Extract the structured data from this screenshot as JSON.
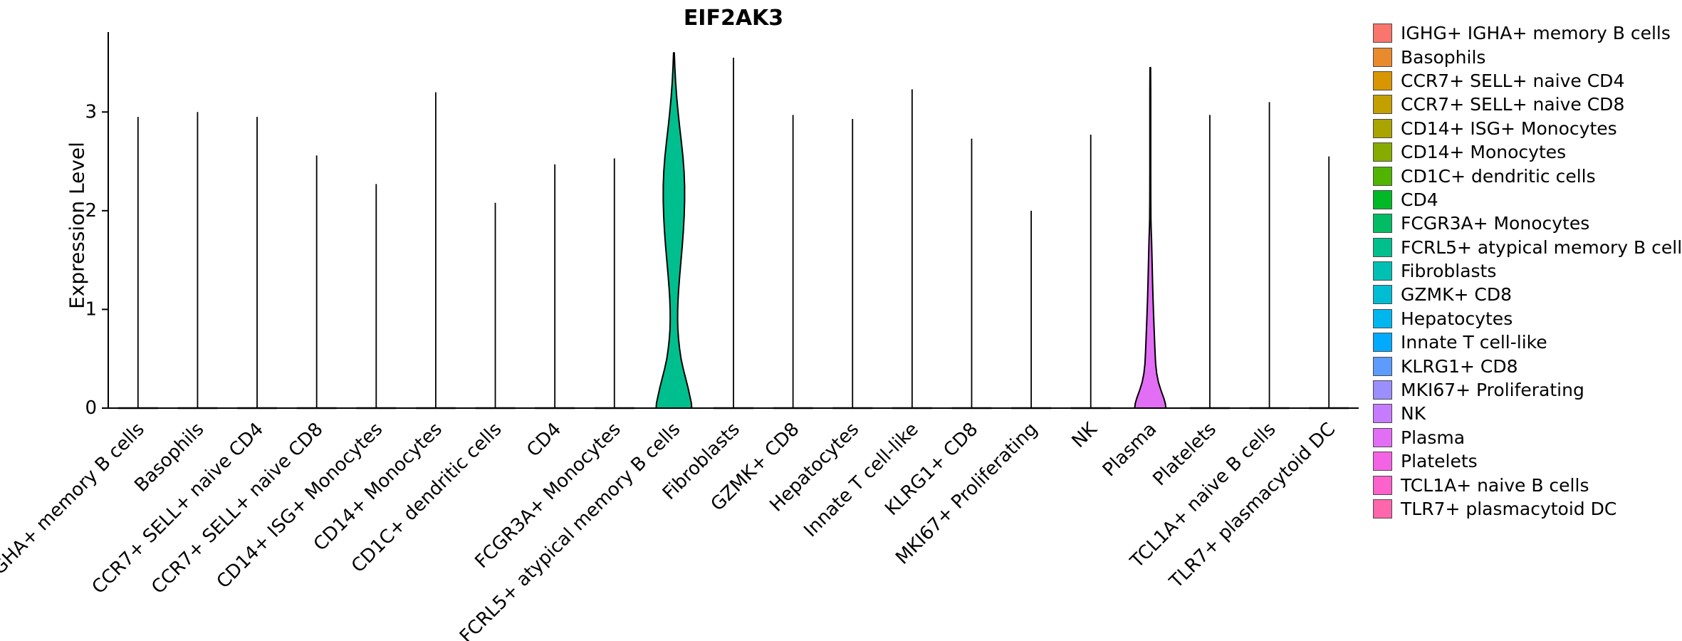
{
  "chart_data": {
    "type": "violin",
    "title": "EIF2AK3",
    "xlabel": "",
    "ylabel": "Expression Level",
    "yticks": [
      0,
      1,
      2,
      3
    ],
    "ylim": [
      0,
      3.81
    ],
    "legend_position": "right",
    "categories": [
      "IGHG+ IGHA+ memory B cells",
      "Basophils",
      "CCR7+ SELL+ naive CD4",
      "CCR7+ SELL+ naive CD8",
      "CD14+ ISG+ Monocytes",
      "CD14+ Monocytes",
      "CD1C+ dendritic cells",
      "CD4",
      "FCGR3A+ Monocytes",
      "FCRL5+ atypical memory B cells",
      "Fibroblasts",
      "GZMK+ CD8",
      "Hepatocytes",
      "Innate T cell-like",
      "KLRG1+ CD8",
      "MKI67+ Proliferating",
      "NK",
      "Plasma",
      "Platelets",
      "TCL1A+ naive B cells",
      "TLR7+ plasmacytoid DC"
    ],
    "series": [
      {
        "name": "IGHG+ IGHA+ memory B cells",
        "color": "#F8766D",
        "max_expression": 2.95,
        "violin": null
      },
      {
        "name": "Basophils",
        "color": "#E98A2C",
        "max_expression": 3.0,
        "violin": null
      },
      {
        "name": "CCR7+ SELL+ naive CD4",
        "color": "#D89600",
        "max_expression": 2.95,
        "violin": null
      },
      {
        "name": "CCR7+ SELL+ naive CD8",
        "color": "#C39F00",
        "max_expression": 2.56,
        "violin": null
      },
      {
        "name": "CD14+ ISG+ Monocytes",
        "color": "#A9A400",
        "max_expression": 2.27,
        "violin": null
      },
      {
        "name": "CD14+ Monocytes",
        "color": "#86AC00",
        "max_expression": 3.2,
        "violin": null
      },
      {
        "name": "CD1C+ dendritic cells",
        "color": "#50B400",
        "max_expression": 2.08,
        "violin": null
      },
      {
        "name": "CD4",
        "color": "#00B927",
        "max_expression": 2.47,
        "violin": null
      },
      {
        "name": "FCGR3A+ Monocytes",
        "color": "#00BC65",
        "max_expression": 2.53,
        "violin": null
      },
      {
        "name": "FCRL5+ atypical memory B cells",
        "color": "#00BF8E",
        "max_expression": 3.6,
        "violin": [
          [
            0.0,
            25
          ],
          [
            0.05,
            24.5
          ],
          [
            0.1,
            23
          ],
          [
            0.2,
            20
          ],
          [
            0.3,
            16.5
          ],
          [
            0.4,
            13
          ],
          [
            0.5,
            10
          ],
          [
            0.6,
            8
          ],
          [
            0.7,
            6.5
          ],
          [
            0.8,
            5.5
          ],
          [
            0.9,
            5.2
          ],
          [
            1.0,
            5.3
          ],
          [
            1.1,
            5.8
          ],
          [
            1.2,
            6.6
          ],
          [
            1.35,
            8.2
          ],
          [
            1.5,
            10
          ],
          [
            1.65,
            11.8
          ],
          [
            1.8,
            13.3
          ],
          [
            1.95,
            14.4
          ],
          [
            2.1,
            15
          ],
          [
            2.25,
            15
          ],
          [
            2.4,
            14.2
          ],
          [
            2.55,
            12.6
          ],
          [
            2.7,
            10.4
          ],
          [
            2.85,
            8
          ],
          [
            3.0,
            5.8
          ],
          [
            3.15,
            3.9
          ],
          [
            3.3,
            2.4
          ],
          [
            3.45,
            1.3
          ],
          [
            3.6,
            0.5
          ]
        ]
      },
      {
        "name": "Fibroblasts",
        "color": "#00C0B3",
        "max_expression": 3.55,
        "violin": null
      },
      {
        "name": "GZMK+ CD8",
        "color": "#00BDD4",
        "max_expression": 2.97,
        "violin": null
      },
      {
        "name": "Hepatocytes",
        "color": "#00B6EE",
        "max_expression": 2.93,
        "violin": null
      },
      {
        "name": "Innate T cell-like",
        "color": "#00AAFF",
        "max_expression": 3.23,
        "violin": null
      },
      {
        "name": "KLRG1+ CD8",
        "color": "#5E9BFF",
        "max_expression": 2.73,
        "violin": null
      },
      {
        "name": "MKI67+ Proliferating",
        "color": "#9B8EFF",
        "max_expression": 2.0,
        "violin": null
      },
      {
        "name": "NK",
        "color": "#C67CFF",
        "max_expression": 2.77,
        "violin": null
      },
      {
        "name": "Plasma",
        "color": "#E36EF6",
        "max_expression": 3.45,
        "violin": [
          [
            0.0,
            22
          ],
          [
            0.05,
            21
          ],
          [
            0.1,
            19
          ],
          [
            0.18,
            15
          ],
          [
            0.26,
            11.5
          ],
          [
            0.35,
            9
          ],
          [
            0.45,
            7.5
          ],
          [
            0.55,
            6.8
          ],
          [
            0.65,
            6.2
          ],
          [
            0.8,
            5.4
          ],
          [
            0.95,
            4.6
          ],
          [
            1.1,
            3.9
          ],
          [
            1.25,
            3.3
          ],
          [
            1.4,
            2.8
          ],
          [
            1.55,
            2.3
          ],
          [
            1.7,
            1.8
          ],
          [
            1.8,
            1.3
          ],
          [
            1.9,
            0.9
          ],
          [
            2.1,
            0.7
          ],
          [
            2.4,
            0.6
          ],
          [
            2.8,
            0.6
          ],
          [
            3.2,
            0.6
          ],
          [
            3.45,
            0.4
          ]
        ]
      },
      {
        "name": "Platelets",
        "color": "#F463E3",
        "max_expression": 2.97,
        "violin": null
      },
      {
        "name": "TCL1A+ naive B cells",
        "color": "#FD61CB",
        "max_expression": 3.1,
        "violin": null
      },
      {
        "name": "TLR7+ plasmacytoid DC",
        "color": "#FF67AC",
        "max_expression": 2.55,
        "violin": null
      }
    ]
  }
}
